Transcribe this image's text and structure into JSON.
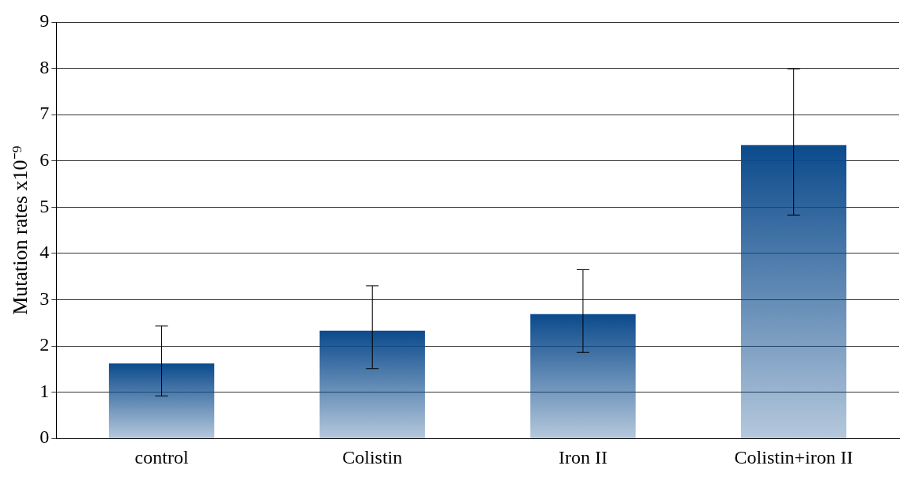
{
  "chart_data": {
    "type": "bar",
    "ylabel": "Mutation rates x10⁻⁹",
    "categories": [
      "control",
      "Colistin",
      "Iron II",
      "Colistin+iron II"
    ],
    "values": [
      1.62,
      2.33,
      2.69,
      6.34
    ],
    "errors": [
      [
        0.92,
        2.43
      ],
      [
        1.51,
        3.3
      ],
      [
        1.86,
        3.65
      ],
      [
        4.83,
        7.99
      ]
    ],
    "color": "#0b4a8c",
    "ylim": [
      0,
      9
    ],
    "yticks": [
      0,
      1,
      2,
      3,
      4,
      5,
      6,
      7,
      8,
      9
    ],
    "grid": "y"
  }
}
